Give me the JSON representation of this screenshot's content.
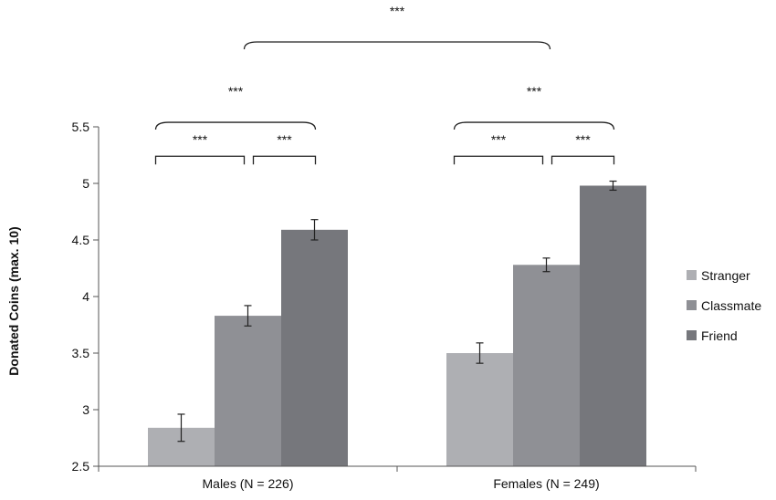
{
  "chart_data": {
    "type": "bar",
    "title": "",
    "xlabel": "",
    "ylabel": "Donated Coins (max. 10)",
    "ylim": [
      2.5,
      5.5
    ],
    "yticks": [
      2.5,
      3,
      3.5,
      4,
      4.5,
      5,
      5.5
    ],
    "ytick_labels": [
      "2.5",
      "3",
      "3.5",
      "4",
      "4.5",
      "5",
      "5.5"
    ],
    "grid": false,
    "legend_position": "right",
    "categories": [
      "Males (N = 226)",
      "Females (N = 249)"
    ],
    "series": [
      {
        "name": "Stranger",
        "color": "#aeafb3",
        "values": [
          2.84,
          3.5
        ],
        "errors": [
          0.12,
          0.09
        ]
      },
      {
        "name": "Classmate",
        "color": "#8f9095",
        "values": [
          3.83,
          4.28
        ],
        "errors": [
          0.09,
          0.06
        ]
      },
      {
        "name": "Friend",
        "color": "#76777c",
        "values": [
          4.59,
          4.98
        ],
        "errors": [
          0.09,
          0.04
        ]
      }
    ],
    "significance": [
      {
        "label": "***",
        "group": 0,
        "from_series": 0,
        "to_series": 1,
        "level": 5.24
      },
      {
        "label": "***",
        "group": 0,
        "from_series": 1,
        "to_series": 2,
        "level": 5.24
      },
      {
        "label": "***",
        "group": 0,
        "from_series": 0,
        "to_series": 2,
        "level": 5.54
      },
      {
        "label": "***",
        "group": 1,
        "from_series": 0,
        "to_series": 1,
        "level": 5.24
      },
      {
        "label": "***",
        "group": 1,
        "from_series": 1,
        "to_series": 2,
        "level": 5.24
      },
      {
        "label": "***",
        "group": 1,
        "from_series": 0,
        "to_series": 2,
        "level": 5.54
      },
      {
        "label": "***",
        "between_groups": true,
        "level": 6.25
      }
    ]
  }
}
